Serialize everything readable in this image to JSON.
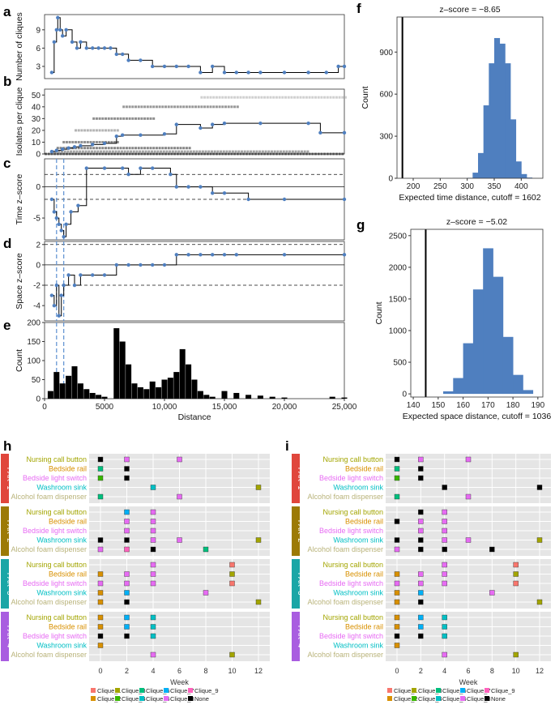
{
  "panel_labels": [
    "a",
    "b",
    "c",
    "d",
    "e",
    "f",
    "g",
    "h",
    "i"
  ],
  "colors": {
    "blue": "#4f7fbf",
    "black": "#000000",
    "grey_bg": "#e5e5e5",
    "object": {
      "Nursing call button": "#a3a500",
      "Bedside rail": "#d89000",
      "Bedside light switch": "#e76bf3",
      "Washroom sink": "#00bfc4",
      "Alcohol foam dispenser": "#b9b37a"
    },
    "strips": [
      "#e0463c",
      "#9c7a06",
      "#1aa6a6",
      "#a95de0"
    ],
    "cliques": {
      "Clique_1": "#f8766d",
      "Clique_2": "#d89000",
      "Clique_3": "#a3a500",
      "Clique_4": "#39b600",
      "Clique_5": "#00bf7d",
      "Clique_6": "#00bfc4",
      "Clique_7": "#00b0f6",
      "Clique_8": "#e76bf3",
      "Clique_9": "#ff62bc",
      "None": "#000000"
    }
  },
  "chart_data": [
    {
      "id": "a",
      "type": "line",
      "ylabel": "Number of cliques",
      "x": [
        600,
        800,
        1000,
        1100,
        1300,
        1500,
        1800,
        2300,
        2700,
        3000,
        3500,
        4000,
        4500,
        5000,
        5500,
        6000,
        6500,
        7000,
        8000,
        9000,
        10000,
        11000,
        12000,
        13000,
        14000,
        15000,
        16000,
        17000,
        18000,
        20000,
        22000,
        23500,
        24500,
        25000
      ],
      "y": [
        2,
        7,
        9,
        11,
        9,
        8,
        9,
        7,
        6,
        7,
        6,
        6,
        6,
        6,
        6,
        5,
        5,
        4,
        4,
        3,
        3,
        3,
        3,
        2,
        3,
        2,
        2,
        2,
        2,
        2,
        2,
        2,
        3,
        3
      ],
      "ylim": [
        1,
        11.5
      ],
      "yticks": [
        3,
        6,
        9
      ]
    },
    {
      "id": "b",
      "type": "line",
      "ylabel": "Isolates per clique",
      "x": [
        600,
        1000,
        1500,
        2000,
        2500,
        3000,
        4000,
        5000,
        6000,
        6500,
        8000,
        10000,
        11000,
        13000,
        14000,
        15000,
        18000,
        22000,
        23000,
        25000
      ],
      "y": [
        2,
        3,
        4,
        5,
        6,
        7,
        8,
        9,
        15,
        16,
        16,
        17,
        25,
        22,
        25,
        26,
        26,
        26,
        18,
        18
      ],
      "ylim": [
        0,
        55
      ],
      "yticks": [
        0,
        10,
        20,
        30,
        40,
        50
      ]
    },
    {
      "id": "c",
      "type": "line",
      "ylabel": "Time z–score",
      "x": [
        600,
        800,
        1000,
        1200,
        1400,
        1600,
        1800,
        2200,
        2800,
        3500,
        5000,
        6500,
        7000,
        8000,
        9000,
        10500,
        11000,
        12000,
        13000,
        14000,
        15000,
        17000,
        20000,
        25000
      ],
      "y": [
        -2,
        -4,
        -5,
        -6,
        -7,
        -8,
        -6,
        -4,
        -3,
        3,
        3,
        3,
        2,
        3,
        3,
        2,
        0,
        0,
        0,
        -1,
        -1,
        -2,
        -2,
        -2
      ],
      "ylim": [
        -8.5,
        4.5
      ],
      "yticks": [
        -5,
        0
      ],
      "hlines": [
        2,
        -2
      ],
      "zero": 0
    },
    {
      "id": "d",
      "type": "line",
      "ylabel": "Space z–score",
      "x": [
        600,
        800,
        1000,
        1200,
        1400,
        1600,
        2000,
        2500,
        3000,
        4000,
        5000,
        6000,
        7000,
        8000,
        9000,
        10000,
        11000,
        12000,
        13000,
        14000,
        15000,
        16000,
        20000,
        25000
      ],
      "y": [
        -3,
        -4,
        -2,
        -5,
        -3,
        -2,
        -1,
        -2,
        -1,
        -1,
        -1,
        0,
        0,
        0,
        0,
        0,
        1,
        1,
        1,
        1,
        1,
        1,
        1,
        1
      ],
      "ylim": [
        -5.5,
        2.3
      ],
      "yticks": [
        -4,
        -2,
        0,
        2
      ],
      "hlines": [
        2,
        -2
      ],
      "zero": 0
    },
    {
      "id": "e",
      "type": "bar",
      "ylabel": "Count",
      "xlabel": "Distance",
      "x": [
        500,
        1000,
        1500,
        2000,
        2500,
        3000,
        3500,
        4000,
        4500,
        5000,
        5500,
        6000,
        6500,
        7000,
        7500,
        8000,
        8500,
        9000,
        9500,
        10000,
        10500,
        11000,
        11500,
        12000,
        12500,
        13000,
        13500,
        14000,
        15000,
        16000,
        17000,
        18000,
        19000,
        20000,
        22000,
        24000,
        25000
      ],
      "y": [
        20,
        70,
        40,
        60,
        85,
        40,
        25,
        15,
        10,
        5,
        0,
        185,
        150,
        90,
        40,
        30,
        25,
        45,
        30,
        50,
        55,
        70,
        130,
        90,
        50,
        20,
        10,
        5,
        20,
        15,
        10,
        8,
        5,
        3,
        0,
        5,
        3
      ],
      "ylim": [
        0,
        200
      ],
      "yticks": [
        0,
        50,
        100,
        150,
        200
      ],
      "xticks": [
        0,
        5000,
        10000,
        15000,
        20000,
        25000
      ],
      "xticklabels": [
        "0",
        "5000",
        "10,000",
        "15,000",
        "20,000",
        "25,000"
      ],
      "xlim": [
        0,
        25000
      ]
    },
    {
      "id": "f",
      "type": "bar",
      "title": "z–score = −8.65",
      "ylabel": "Count",
      "xlabel": "Expected time distance, cutoff = 1602",
      "bins": [
        300,
        310,
        320,
        330,
        340,
        350,
        360,
        370,
        380,
        390,
        400,
        410
      ],
      "values": [
        3,
        40,
        180,
        520,
        820,
        1000,
        960,
        820,
        420,
        120,
        30,
        5
      ],
      "observed": 180,
      "xlim": [
        170,
        440
      ],
      "ylim": [
        0,
        1150
      ],
      "xticks": [
        200,
        250,
        300,
        350,
        400
      ],
      "yticks": [
        0,
        300,
        600,
        900
      ]
    },
    {
      "id": "g",
      "type": "bar",
      "title": "z–score = −5.02",
      "ylabel": "Count",
      "xlabel": "Expected space distance, cutoff = 1036",
      "bins": [
        152,
        156,
        160,
        164,
        168,
        172,
        176,
        180,
        184
      ],
      "values": [
        40,
        250,
        800,
        1650,
        2300,
        1850,
        900,
        300,
        60
      ],
      "observed": 145,
      "xlim": [
        139,
        192
      ],
      "ylim": [
        -50,
        2600
      ],
      "xticks": [
        140,
        150,
        160,
        170,
        180,
        190
      ],
      "yticks": [
        0,
        500,
        1000,
        1500,
        2000,
        2500
      ]
    },
    {
      "id": "h",
      "type": "scatter",
      "xlabel": "Week",
      "xticks": [
        0,
        2,
        4,
        6,
        8,
        10,
        12
      ],
      "objects": [
        "Nursing call button",
        "Bedside rail",
        "Bedside light switch",
        "Washroom sink",
        "Alcohol foam dispenser"
      ],
      "facets": [
        {
          "label": "PAK−1",
          "points": [
            [
              0,
              0,
              "None"
            ],
            [
              2,
              0,
              "Clique_8"
            ],
            [
              6,
              0,
              "Clique_8"
            ],
            [
              0,
              1,
              "Clique_5"
            ],
            [
              2,
              1,
              "None"
            ],
            [
              0,
              2,
              "Clique_4"
            ],
            [
              2,
              2,
              "None"
            ],
            [
              4,
              3,
              "Clique_6"
            ],
            [
              12,
              3,
              "Clique_3"
            ],
            [
              0,
              4,
              "Clique_5"
            ],
            [
              6,
              4,
              "Clique_8"
            ]
          ]
        },
        {
          "label": "PAK−2",
          "points": [
            [
              2,
              0,
              "Clique_7"
            ],
            [
              4,
              0,
              "Clique_8"
            ],
            [
              2,
              1,
              "Clique_8"
            ],
            [
              4,
              1,
              "Clique_8"
            ],
            [
              2,
              2,
              "Clique_8"
            ],
            [
              4,
              2,
              "Clique_8"
            ],
            [
              0,
              3,
              "None"
            ],
            [
              2,
              3,
              "None"
            ],
            [
              4,
              3,
              "Clique_8"
            ],
            [
              6,
              3,
              "Clique_8"
            ],
            [
              12,
              3,
              "Clique_3"
            ],
            [
              0,
              4,
              "Clique_8"
            ],
            [
              2,
              4,
              "Clique_9"
            ],
            [
              4,
              4,
              "None"
            ],
            [
              8,
              4,
              "Clique_5"
            ]
          ]
        },
        {
          "label": "PAK−3",
          "points": [
            [
              4,
              0,
              "Clique_8"
            ],
            [
              10,
              0,
              "Clique_1"
            ],
            [
              0,
              1,
              "Clique_2"
            ],
            [
              2,
              1,
              "Clique_8"
            ],
            [
              4,
              1,
              "Clique_8"
            ],
            [
              10,
              1,
              "Clique_3"
            ],
            [
              0,
              2,
              "Clique_8"
            ],
            [
              2,
              2,
              "Clique_8"
            ],
            [
              4,
              2,
              "Clique_8"
            ],
            [
              10,
              2,
              "Clique_1"
            ],
            [
              0,
              3,
              "Clique_2"
            ],
            [
              2,
              3,
              "Clique_7"
            ],
            [
              8,
              3,
              "Clique_8"
            ],
            [
              0,
              4,
              "Clique_2"
            ],
            [
              2,
              4,
              "None"
            ],
            [
              12,
              4,
              "Clique_3"
            ]
          ]
        },
        {
          "label": "PAK−4",
          "points": [
            [
              0,
              0,
              "Clique_2"
            ],
            [
              2,
              0,
              "Clique_7"
            ],
            [
              4,
              0,
              "Clique_6"
            ],
            [
              0,
              1,
              "Clique_2"
            ],
            [
              2,
              1,
              "Clique_7"
            ],
            [
              4,
              1,
              "Clique_6"
            ],
            [
              0,
              2,
              "None"
            ],
            [
              2,
              2,
              "None"
            ],
            [
              4,
              2,
              "Clique_6"
            ],
            [
              0,
              3,
              "Clique_2"
            ],
            [
              4,
              4,
              "Clique_8"
            ],
            [
              10,
              4,
              "Clique_3"
            ]
          ]
        }
      ]
    },
    {
      "id": "i",
      "type": "scatter",
      "xlabel": "Week",
      "xticks": [
        0,
        2,
        4,
        6,
        8,
        10,
        12
      ],
      "objects": [
        "Nursing call button",
        "Bedside rail",
        "Bedside light switch",
        "Washroom sink",
        "Alcohol foam dispenser"
      ],
      "facets": [
        {
          "label": "PAK−1",
          "points": [
            [
              0,
              0,
              "None"
            ],
            [
              2,
              0,
              "Clique_8"
            ],
            [
              6,
              0,
              "Clique_8"
            ],
            [
              0,
              1,
              "Clique_5"
            ],
            [
              2,
              1,
              "None"
            ],
            [
              0,
              2,
              "Clique_4"
            ],
            [
              2,
              2,
              "None"
            ],
            [
              4,
              3,
              "None"
            ],
            [
              12,
              3,
              "None"
            ],
            [
              0,
              4,
              "Clique_5"
            ],
            [
              6,
              4,
              "Clique_8"
            ]
          ]
        },
        {
          "label": "PAK−2",
          "points": [
            [
              2,
              0,
              "None"
            ],
            [
              4,
              0,
              "Clique_8"
            ],
            [
              0,
              1,
              "None"
            ],
            [
              2,
              1,
              "Clique_8"
            ],
            [
              4,
              1,
              "Clique_8"
            ],
            [
              2,
              2,
              "Clique_8"
            ],
            [
              4,
              2,
              "Clique_8"
            ],
            [
              0,
              3,
              "None"
            ],
            [
              2,
              3,
              "None"
            ],
            [
              4,
              3,
              "Clique_8"
            ],
            [
              6,
              3,
              "Clique_8"
            ],
            [
              12,
              3,
              "Clique_3"
            ],
            [
              0,
              4,
              "Clique_8"
            ],
            [
              2,
              4,
              "None"
            ],
            [
              4,
              4,
              "None"
            ],
            [
              8,
              4,
              "None"
            ]
          ]
        },
        {
          "label": "PAK−3",
          "points": [
            [
              4,
              0,
              "Clique_8"
            ],
            [
              10,
              0,
              "Clique_1"
            ],
            [
              0,
              1,
              "Clique_2"
            ],
            [
              2,
              1,
              "Clique_8"
            ],
            [
              4,
              1,
              "Clique_8"
            ],
            [
              10,
              1,
              "Clique_3"
            ],
            [
              0,
              2,
              "Clique_8"
            ],
            [
              2,
              2,
              "Clique_8"
            ],
            [
              4,
              2,
              "Clique_8"
            ],
            [
              10,
              2,
              "Clique_1"
            ],
            [
              0,
              3,
              "Clique_2"
            ],
            [
              2,
              3,
              "Clique_7"
            ],
            [
              8,
              3,
              "Clique_8"
            ],
            [
              0,
              4,
              "Clique_2"
            ],
            [
              2,
              4,
              "None"
            ],
            [
              12,
              4,
              "Clique_3"
            ]
          ]
        },
        {
          "label": "PAK−4",
          "points": [
            [
              0,
              0,
              "Clique_2"
            ],
            [
              2,
              0,
              "Clique_7"
            ],
            [
              4,
              0,
              "Clique_6"
            ],
            [
              0,
              1,
              "Clique_2"
            ],
            [
              2,
              1,
              "Clique_7"
            ],
            [
              4,
              1,
              "Clique_6"
            ],
            [
              0,
              2,
              "None"
            ],
            [
              2,
              2,
              "None"
            ],
            [
              4,
              2,
              "Clique_6"
            ],
            [
              0,
              3,
              "Clique_2"
            ],
            [
              4,
              4,
              "Clique_8"
            ],
            [
              10,
              4,
              "Clique_3"
            ]
          ]
        }
      ]
    }
  ],
  "legend": {
    "items": [
      "Clique_1",
      "Clique_2",
      "Clique_3",
      "Clique_4",
      "Clique_5",
      "Clique_6",
      "Clique_7",
      "Clique_8",
      "Clique_9",
      "None"
    ]
  }
}
